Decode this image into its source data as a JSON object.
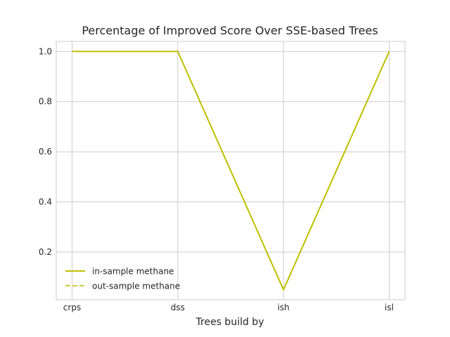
{
  "chart_data": {
    "type": "line",
    "title": "Percentage of Improved Score Over SSE-based Trees",
    "xlabel": "Trees build by",
    "ylabel": "",
    "categories": [
      "crps",
      "dss",
      "ish",
      "isl"
    ],
    "ylim": [
      0.01,
      1.04
    ],
    "yticks": [
      0.2,
      0.4,
      0.6,
      0.8,
      1.0
    ],
    "ytick_labels": [
      "0.2",
      "0.4",
      "0.6",
      "0.8",
      "1.0"
    ],
    "grid": true,
    "legend_position": "lower-left",
    "series": [
      {
        "name": "in-sample methane",
        "values": [
          1.0,
          1.0,
          0.05,
          1.0
        ],
        "color": "#bfbf00",
        "style": "solid"
      },
      {
        "name": "out-sample methane",
        "values": [
          1.0,
          1.0,
          0.05,
          1.0
        ],
        "color": "#bfbf00",
        "style": "dashed"
      }
    ]
  }
}
